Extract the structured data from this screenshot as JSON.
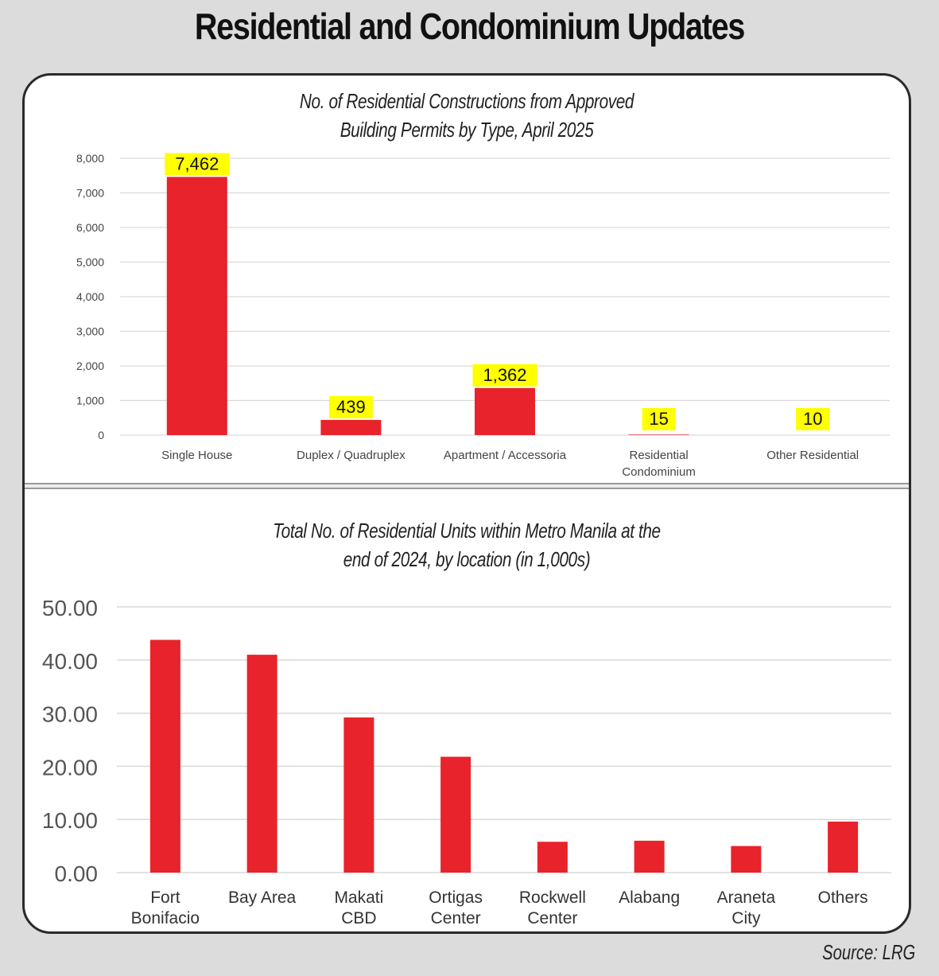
{
  "title": "Residential and Condominium Updates",
  "source": "Source: LRG",
  "colors": {
    "bar": "#e8232b",
    "label_bg": "#ffff00",
    "grid": "#d9d9d9",
    "axis_text": "#444444"
  },
  "chart_data": [
    {
      "type": "bar",
      "title_lines": [
        "No. of Residential Constructions from Approved",
        "Building Permits by Type, April 2025"
      ],
      "categories": [
        [
          "Single House"
        ],
        [
          "Duplex / Quadruplex"
        ],
        [
          "Apartment / Accessoria"
        ],
        [
          "Residential",
          "Condominium"
        ],
        [
          "Other Residential"
        ]
      ],
      "values": [
        7462,
        439,
        1362,
        15,
        10
      ],
      "data_labels": [
        "7,462",
        "439",
        "1,362",
        "15",
        "10"
      ],
      "yticks": [
        "0",
        "1,000",
        "2,000",
        "3,000",
        "4,000",
        "5,000",
        "6,000",
        "7,000",
        "8,000"
      ],
      "ylim": [
        0,
        8000
      ],
      "grid": true
    },
    {
      "type": "bar",
      "title_lines": [
        "Total No. of Residential Units within Metro Manila at the",
        "end of 2024, by location (in 1,000s)"
      ],
      "categories": [
        [
          "Fort",
          "Bonifacio"
        ],
        [
          "Bay Area"
        ],
        [
          "Makati",
          "CBD"
        ],
        [
          "Ortigas",
          "Center"
        ],
        [
          "Rockwell",
          "Center"
        ],
        [
          "Alabang"
        ],
        [
          "Araneta",
          "City"
        ],
        [
          "Others"
        ]
      ],
      "values": [
        43.8,
        41.0,
        29.2,
        21.8,
        5.8,
        6.0,
        5.0,
        9.6
      ],
      "yticks": [
        "0.00",
        "10.00",
        "20.00",
        "30.00",
        "40.00",
        "50.00"
      ],
      "ylim": [
        0,
        50
      ],
      "grid": true
    }
  ]
}
